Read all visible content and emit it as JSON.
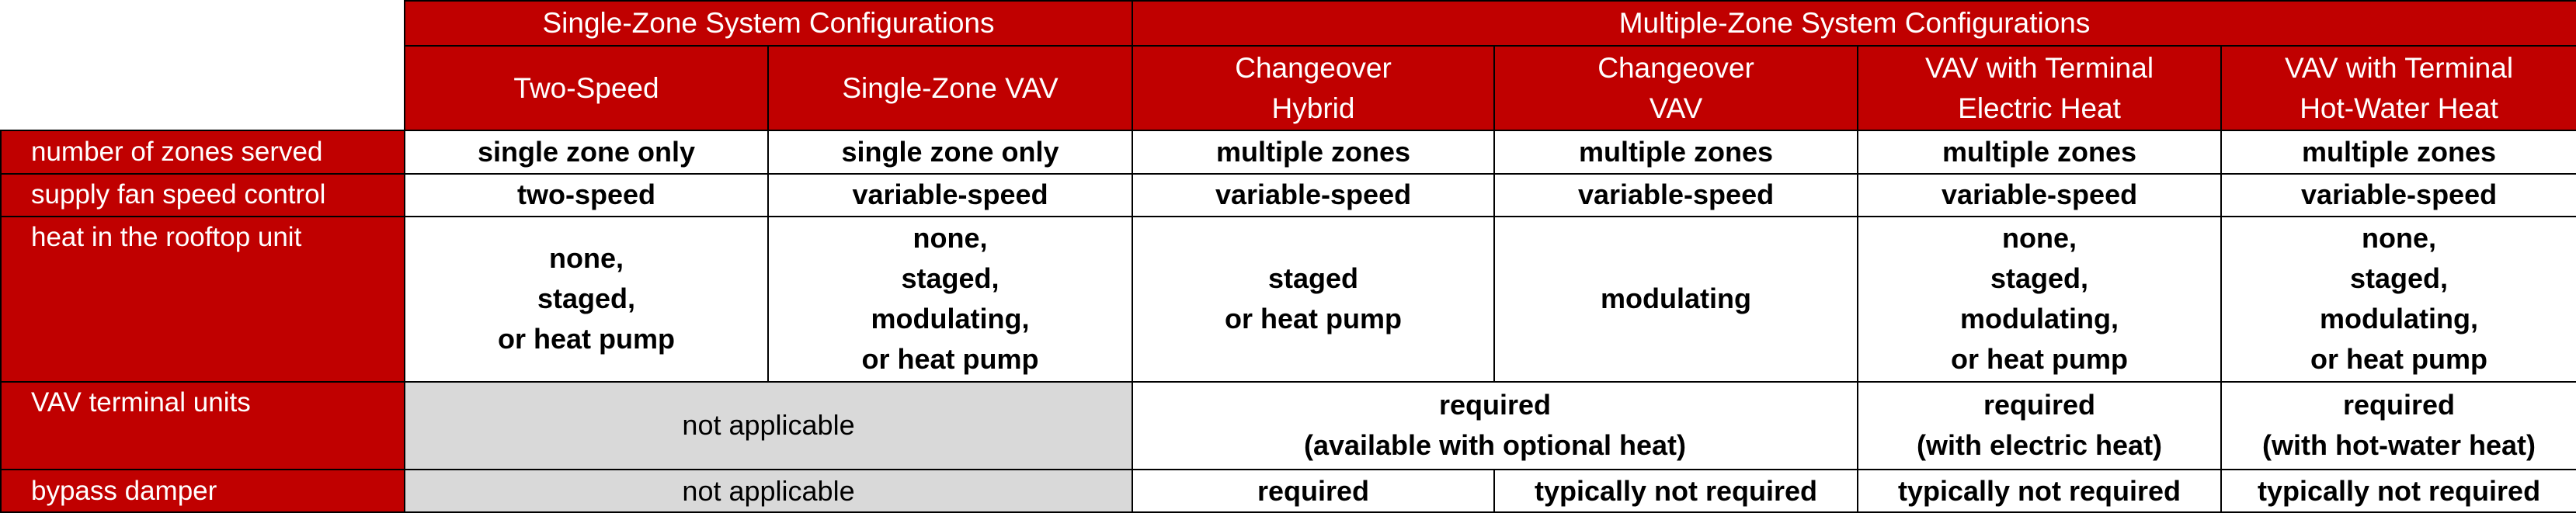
{
  "groups": {
    "single_zone": "Single-Zone System Configurations",
    "multi_zone": "Multiple-Zone System Configurations"
  },
  "columns": [
    "Two-Speed",
    "Single-Zone VAV",
    "Changeover\nHybrid",
    "Changeover\nVAV",
    "VAV with Terminal\nElectric Heat",
    "VAV with Terminal\nHot-Water Heat"
  ],
  "rows": {
    "zones": {
      "label": "number of zones served",
      "values": [
        "single zone only",
        "single zone only",
        "multiple zones",
        "multiple zones",
        "multiple zones",
        "multiple zones"
      ]
    },
    "fan": {
      "label": "supply fan speed control",
      "values": [
        "two-speed",
        "variable-speed",
        "variable-speed",
        "variable-speed",
        "variable-speed",
        "variable-speed"
      ]
    },
    "heat": {
      "label": "heat in the rooftop unit",
      "values": [
        "none,\nstaged,\nor heat pump",
        "none,\nstaged,\nmodulating,\nor heat pump",
        "staged\nor heat pump",
        "modulating",
        "none,\nstaged,\nmodulating,\nor heat pump",
        "none,\nstaged,\nmodulating,\nor heat pump"
      ]
    },
    "vav": {
      "label": "VAV terminal units",
      "na": "not applicable",
      "changeover": "required\n(available with optional heat)",
      "electric": "required\n(with electric heat)",
      "hotwater": "required\n(with hot-water heat)"
    },
    "bypass": {
      "label": "bypass damper",
      "na": "not applicable",
      "values": [
        "required",
        "typically not required",
        "typically not required",
        "typically not required"
      ]
    }
  },
  "colors": {
    "header_red": "#c00000",
    "na_gray": "#d9d9d9",
    "text_white": "#ffffff",
    "border": "#000000"
  }
}
